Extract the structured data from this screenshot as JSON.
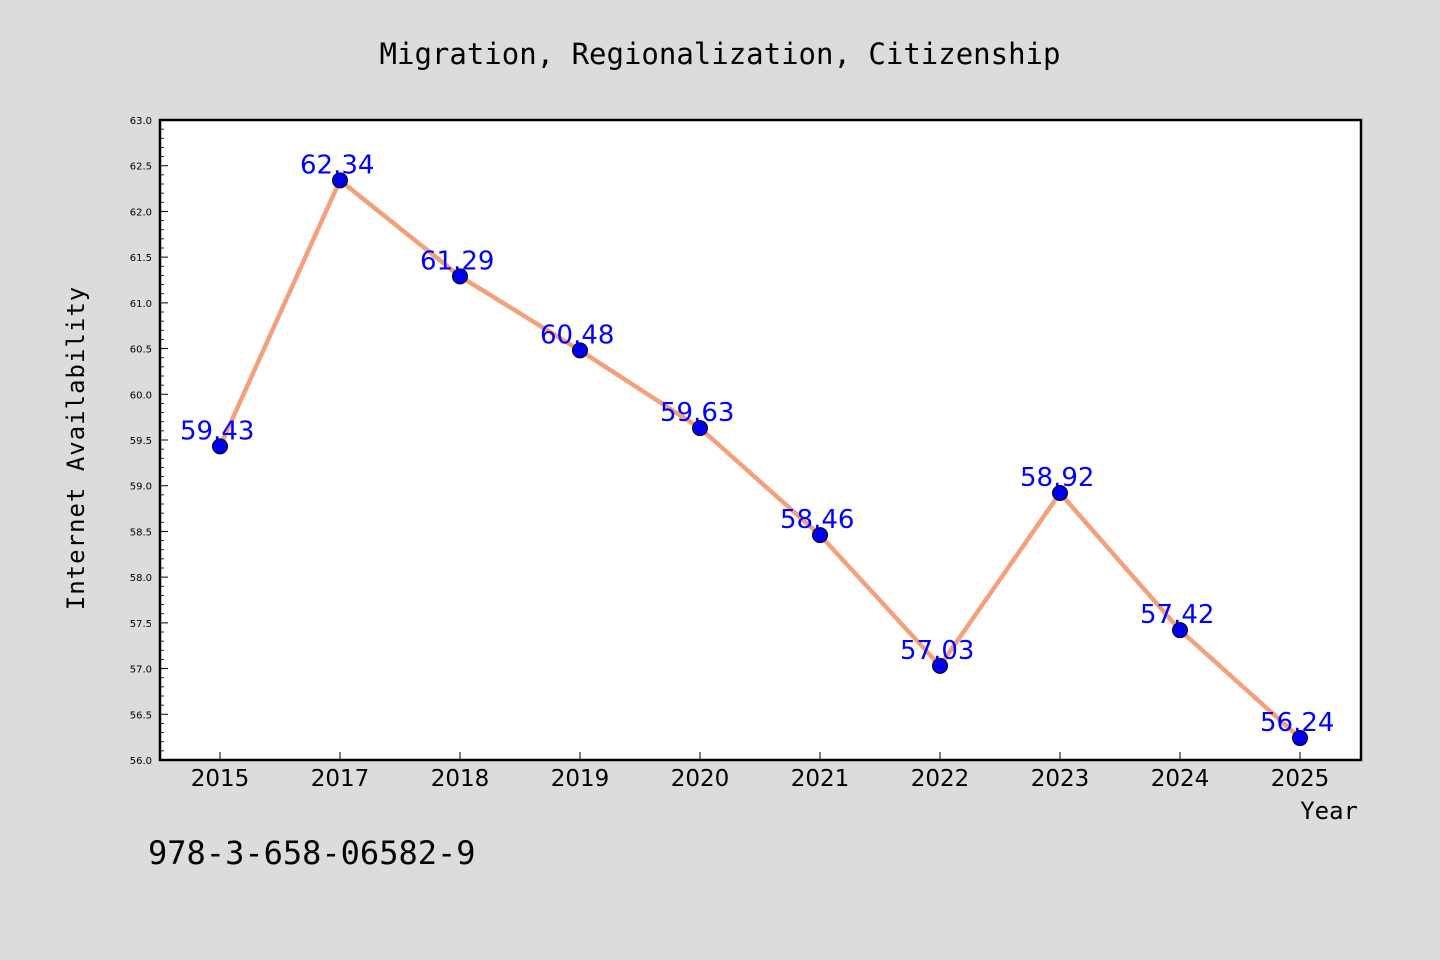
{
  "chart_data": {
    "type": "line",
    "title": "Migration, Regionalization, Citizenship",
    "xlabel": "Year",
    "ylabel": "Internet Availability",
    "categories": [
      "2015",
      "2017",
      "2018",
      "2019",
      "2020",
      "2021",
      "2022",
      "2023",
      "2024",
      "2025"
    ],
    "values": [
      59.43,
      62.34,
      61.29,
      60.48,
      59.63,
      58.46,
      57.03,
      58.92,
      57.42,
      56.24
    ],
    "data_labels": [
      "59.43",
      "62.34",
      "61.29",
      "60.48",
      "59.63",
      "58.46",
      "57.03",
      "58.92",
      "57.42",
      "56.24"
    ],
    "ylim": [
      56.0,
      63.0
    ],
    "yticks": [
      "56.0",
      "56.5",
      "57.0",
      "57.5",
      "58.0",
      "58.5",
      "59.0",
      "59.5",
      "60.0",
      "60.5",
      "61.0",
      "61.5",
      "62.0",
      "62.5",
      "63.0"
    ],
    "grid": false,
    "line_color": "#f4a07c",
    "marker_color": "#0000ee",
    "label_color": "#0000ff"
  },
  "footer": {
    "isbn": "978-3-658-06582-9"
  }
}
